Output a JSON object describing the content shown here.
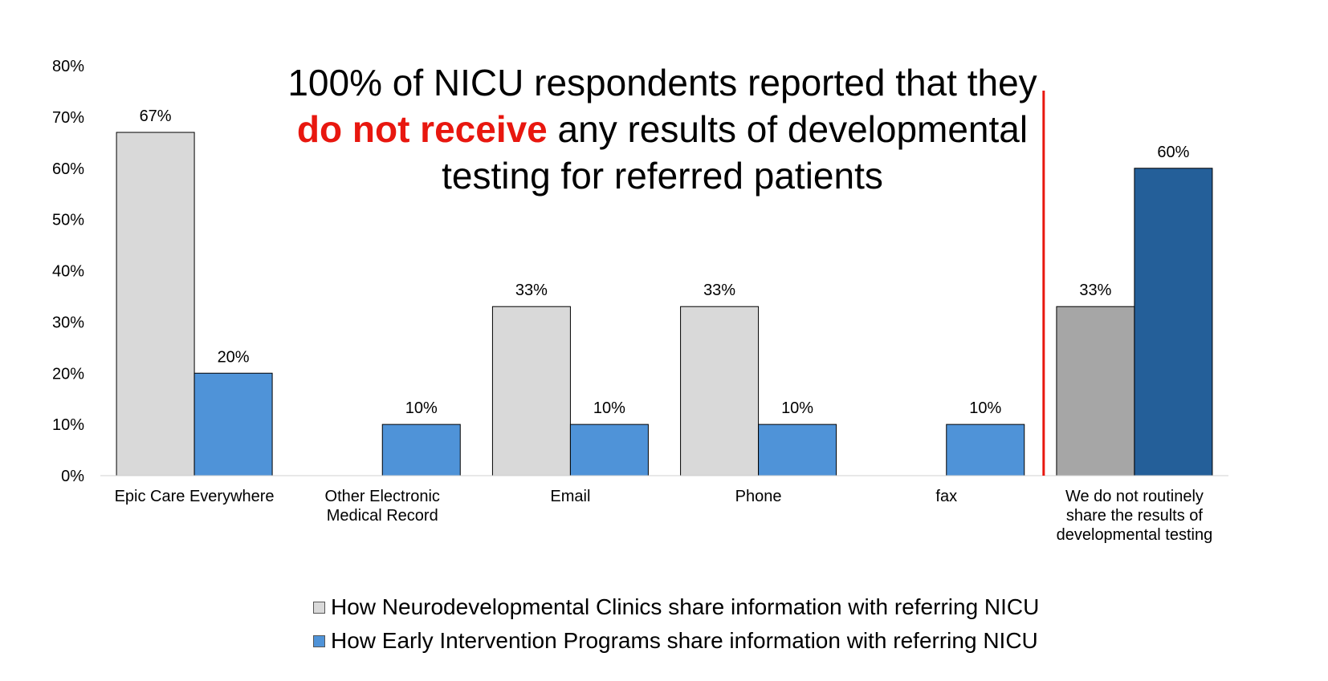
{
  "title": {
    "line1": "100% of NICU respondents reported that they",
    "highlight": "do not receive",
    "line2_rest": " any results of developmental",
    "line3": "testing for referred patients"
  },
  "colors": {
    "series1": "#d9d9d9",
    "series2": "#4f93d8",
    "series1_highlight": "#a6a6a6",
    "series2_highlight": "#245f99",
    "divider": "#e8170f",
    "highlight_text": "#e8170f"
  },
  "chart_data": {
    "type": "bar",
    "categories": [
      [
        "Epic Care Everywhere"
      ],
      [
        "Other Electronic",
        "Medical Record"
      ],
      [
        "Email"
      ],
      [
        "Phone"
      ],
      [
        "fax"
      ],
      [
        "We do not routinely",
        "share the results of",
        "developmental testing"
      ]
    ],
    "series": [
      {
        "name": "How Neurodevelopmental Clinics share information with referring NICU",
        "values": [
          67,
          null,
          33,
          33,
          null,
          33
        ],
        "labels": [
          "67%",
          "",
          "33%",
          "33%",
          "",
          "33%"
        ]
      },
      {
        "name": "How Early Intervention Programs share information with referring NICU",
        "values": [
          20,
          10,
          10,
          10,
          10,
          60
        ],
        "labels": [
          "20%",
          "10%",
          "10%",
          "10%",
          "10%",
          "60%"
        ]
      }
    ],
    "yticks": [
      "0%",
      "10%",
      "20%",
      "30%",
      "40%",
      "50%",
      "60%",
      "70%",
      "80%"
    ],
    "ylim": [
      0,
      80
    ],
    "grid": false,
    "legend": "bottom",
    "divider_after_category": 4
  }
}
